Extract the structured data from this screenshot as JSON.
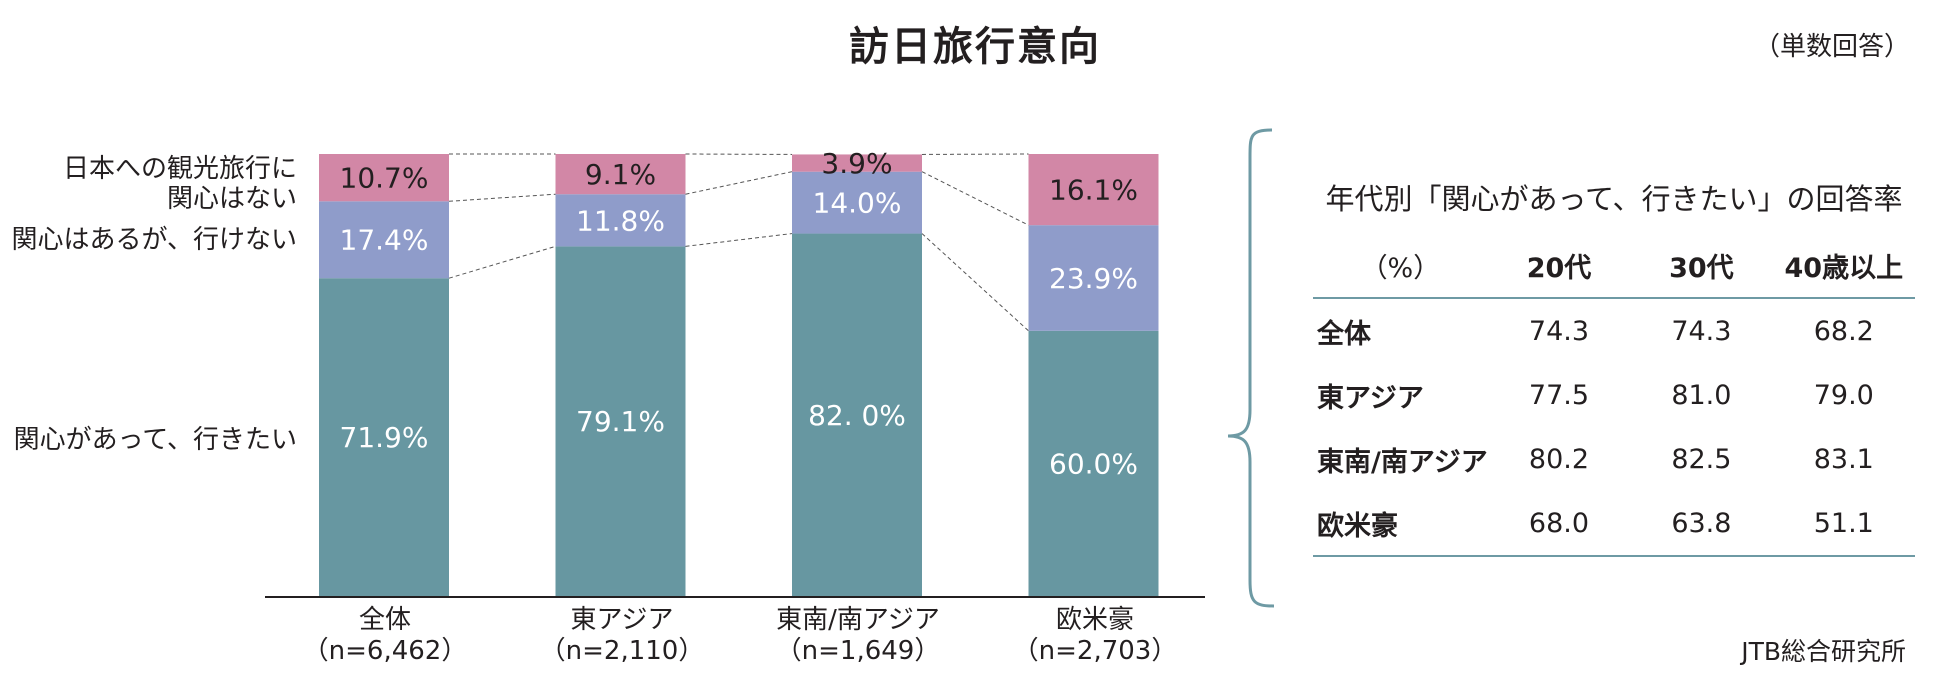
{
  "title": "訪日旅行意向",
  "unit_note": "（単数回答）",
  "source": "JTB総合研究所",
  "chart_data": {
    "type": "bar",
    "stacked": true,
    "ylim": [
      0,
      100
    ],
    "grid": false,
    "legend_placement": "left",
    "categories": [
      "全体",
      "東アジア",
      "東南/南アジア",
      "欧米豪"
    ],
    "category_n": [
      "（n=6,462）",
      "（n=2,110）",
      "（n=1,649）",
      "（n=2,703）"
    ],
    "series": [
      {
        "name": "関心があって、行きたい",
        "values": [
          71.9,
          79.1,
          82.0,
          60.0
        ],
        "labels": [
          "71.9%",
          "79.1%",
          "82. 0%",
          "60.0%"
        ],
        "color": "#6797a1",
        "label_color": "#ffffff"
      },
      {
        "name": "関心はあるが、行けない",
        "values": [
          17.4,
          11.8,
          14.0,
          23.9
        ],
        "labels": [
          "17.4%",
          "11.8%",
          "14.0%",
          "23.9%"
        ],
        "color": "#8f9cca",
        "label_color": "#ffffff"
      },
      {
        "name": "日本への観光旅行に関心はない",
        "name_lines": [
          "日本への観光旅行に",
          "関心はない"
        ],
        "values": [
          10.7,
          9.1,
          3.9,
          16.1
        ],
        "labels": [
          "10.7%",
          "9.1%",
          "3.9%",
          "16.1%"
        ],
        "color": "#d287a6",
        "label_color": "#231f20"
      }
    ]
  },
  "age_table": {
    "title": "年代別「関心があって、行きたい」の回答率",
    "header": [
      "（%）",
      "20代",
      "30代",
      "40歳以上"
    ],
    "rows": [
      {
        "label": "全体",
        "values": [
          "74.3",
          "74.3",
          "68.2"
        ]
      },
      {
        "label": "東アジア",
        "values": [
          "77.5",
          "81.0",
          "79.0"
        ]
      },
      {
        "label": "東南/南アジア",
        "values": [
          "80.2",
          "82.5",
          "83.1"
        ]
      },
      {
        "label": "欧米豪",
        "values": [
          "68.0",
          "63.8",
          "51.1"
        ]
      }
    ]
  }
}
